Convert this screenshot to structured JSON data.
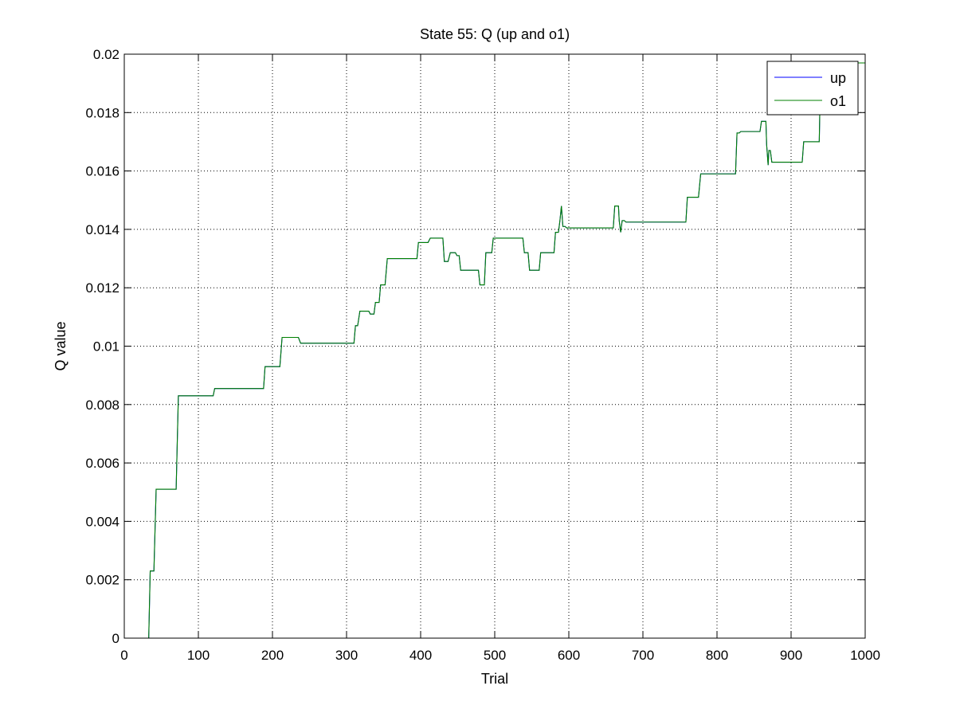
{
  "chart_data": {
    "type": "line",
    "title": "State 55: Q (up and o1)",
    "xlabel": "Trial",
    "ylabel": "Q value",
    "xlim": [
      0,
      1000
    ],
    "ylim": [
      0,
      0.02
    ],
    "xticks": [
      0,
      100,
      200,
      300,
      400,
      500,
      600,
      700,
      800,
      900,
      1000
    ],
    "xtick_labels": [
      "0",
      "100",
      "200",
      "300",
      "400",
      "500",
      "600",
      "700",
      "800",
      "900",
      "1000"
    ],
    "yticks": [
      0,
      0.002,
      0.004,
      0.006,
      0.008,
      0.01,
      0.012,
      0.014,
      0.016,
      0.018,
      0.02
    ],
    "ytick_labels": [
      "0",
      "0.002",
      "0.004",
      "0.006",
      "0.008",
      "0.01",
      "0.012",
      "0.014",
      "0.016",
      "0.018",
      "0.02"
    ],
    "grid": true,
    "legend_position": "top-right",
    "series": [
      {
        "name": "up",
        "color": "#0000ff",
        "x": [
          0,
          33,
          35,
          40,
          43,
          70,
          73,
          120,
          122,
          188,
          190,
          210,
          213,
          235,
          238,
          310,
          312,
          315,
          318,
          330,
          332,
          337,
          339,
          344,
          346,
          352,
          355,
          395,
          397,
          410,
          413,
          430,
          432,
          437,
          440,
          447,
          449,
          452,
          454,
          478,
          480,
          486,
          488,
          496,
          498,
          538,
          540,
          545,
          547,
          560,
          562,
          580,
          582,
          586,
          588,
          590,
          592,
          595,
          597,
          660,
          662,
          667,
          668,
          670,
          672,
          675,
          677,
          758,
          760,
          775,
          778,
          825,
          827,
          830,
          832,
          858,
          860,
          866,
          867,
          869,
          870,
          872,
          874,
          900,
          902,
          915,
          917,
          938,
          940,
          1000
        ],
        "y": [
          0,
          0,
          0.0023,
          0.0023,
          0.0051,
          0.0051,
          0.0083,
          0.0083,
          0.00855,
          0.00855,
          0.0093,
          0.0093,
          0.0103,
          0.0103,
          0.0101,
          0.0101,
          0.0107,
          0.0107,
          0.0112,
          0.0112,
          0.0111,
          0.0111,
          0.0115,
          0.0115,
          0.0121,
          0.0121,
          0.013,
          0.013,
          0.01355,
          0.01355,
          0.0137,
          0.0137,
          0.0129,
          0.0129,
          0.0132,
          0.0132,
          0.0131,
          0.0131,
          0.0126,
          0.0126,
          0.0121,
          0.0121,
          0.0132,
          0.0132,
          0.0137,
          0.0137,
          0.0132,
          0.0132,
          0.0126,
          0.0126,
          0.0132,
          0.0132,
          0.0139,
          0.0139,
          0.0143,
          0.0148,
          0.0141,
          0.0141,
          0.01405,
          0.01405,
          0.0148,
          0.0148,
          0.0143,
          0.0139,
          0.0143,
          0.0143,
          0.01425,
          0.01425,
          0.0151,
          0.0151,
          0.0159,
          0.0159,
          0.0173,
          0.0173,
          0.01735,
          0.01735,
          0.0177,
          0.0177,
          0.0169,
          0.0162,
          0.0167,
          0.0167,
          0.0163,
          0.0163,
          0.0163,
          0.0163,
          0.017,
          0.017,
          0.0197,
          0.0197
        ]
      },
      {
        "name": "o1",
        "color": "#008000",
        "x": [
          0,
          33,
          35,
          40,
          43,
          70,
          73,
          120,
          122,
          188,
          190,
          210,
          213,
          235,
          238,
          310,
          312,
          315,
          318,
          330,
          332,
          337,
          339,
          344,
          346,
          352,
          355,
          395,
          397,
          410,
          413,
          430,
          432,
          437,
          440,
          447,
          449,
          452,
          454,
          478,
          480,
          486,
          488,
          496,
          498,
          538,
          540,
          545,
          547,
          560,
          562,
          580,
          582,
          586,
          588,
          590,
          592,
          595,
          597,
          660,
          662,
          667,
          668,
          670,
          672,
          675,
          677,
          758,
          760,
          775,
          778,
          825,
          827,
          830,
          832,
          858,
          860,
          866,
          867,
          869,
          870,
          872,
          874,
          900,
          902,
          915,
          917,
          938,
          940,
          1000
        ],
        "y": [
          0,
          0,
          0.0023,
          0.0023,
          0.0051,
          0.0051,
          0.0083,
          0.0083,
          0.00855,
          0.00855,
          0.0093,
          0.0093,
          0.0103,
          0.0103,
          0.0101,
          0.0101,
          0.0107,
          0.0107,
          0.0112,
          0.0112,
          0.0111,
          0.0111,
          0.0115,
          0.0115,
          0.0121,
          0.0121,
          0.013,
          0.013,
          0.01355,
          0.01355,
          0.0137,
          0.0137,
          0.0129,
          0.0129,
          0.0132,
          0.0132,
          0.0131,
          0.0131,
          0.0126,
          0.0126,
          0.0121,
          0.0121,
          0.0132,
          0.0132,
          0.0137,
          0.0137,
          0.0132,
          0.0132,
          0.0126,
          0.0126,
          0.0132,
          0.0132,
          0.0139,
          0.0139,
          0.0143,
          0.0148,
          0.0141,
          0.0141,
          0.01405,
          0.01405,
          0.0148,
          0.0148,
          0.0143,
          0.0139,
          0.0143,
          0.0143,
          0.01425,
          0.01425,
          0.0151,
          0.0151,
          0.0159,
          0.0159,
          0.0173,
          0.0173,
          0.01735,
          0.01735,
          0.0177,
          0.0177,
          0.0169,
          0.0162,
          0.0167,
          0.0167,
          0.0163,
          0.0163,
          0.0163,
          0.0163,
          0.017,
          0.017,
          0.0197,
          0.0197
        ]
      }
    ]
  }
}
